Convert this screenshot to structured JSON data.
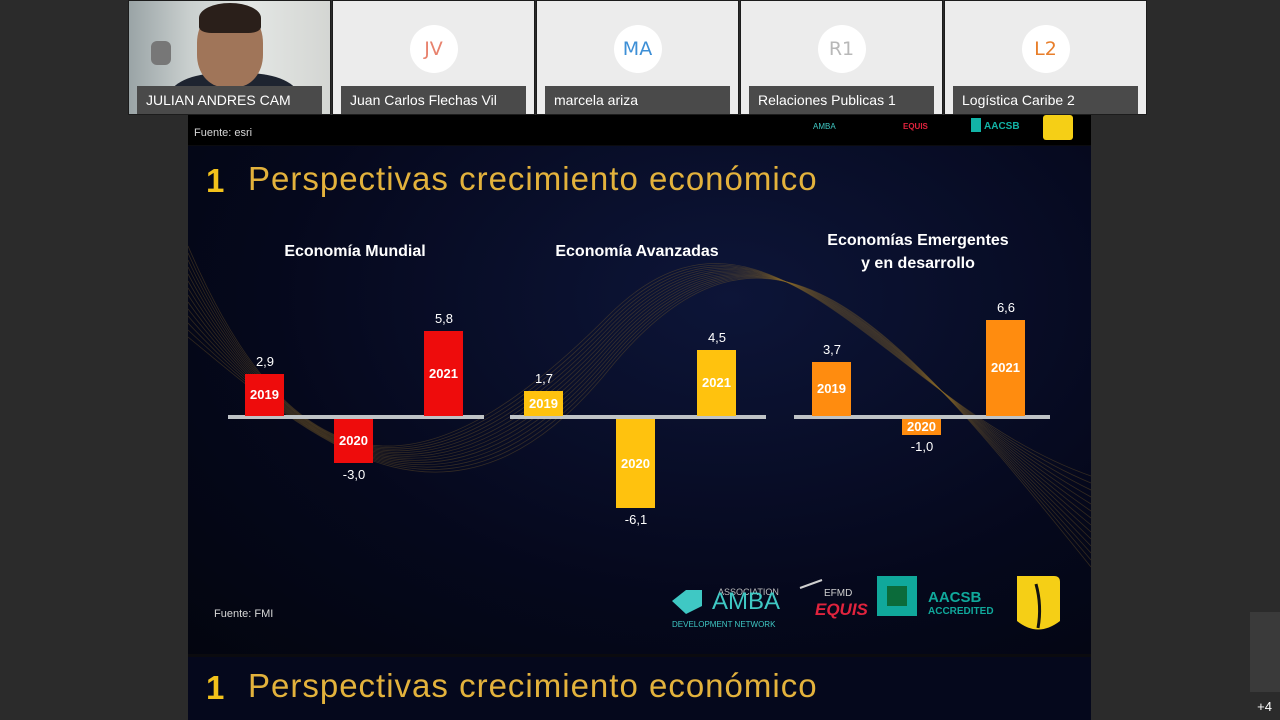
{
  "participants": [
    {
      "name": "JULIAN ANDRES CAM",
      "video": true
    },
    {
      "initials": "JV",
      "name": "Juan Carlos Flechas Vil",
      "color": "#e8826d"
    },
    {
      "initials": "MA",
      "name": "marcela ariza",
      "color": "#3d8fd6"
    },
    {
      "initials": "R1",
      "name": "Relaciones Publicas 1",
      "color": "#b8b8b8"
    },
    {
      "initials": "L2",
      "name": "Logística Caribe 2",
      "color": "#e87e2a"
    }
  ],
  "more_count": "+4",
  "slide_prev": {
    "source": "Fuente: esri"
  },
  "slide": {
    "number": "1",
    "title": "Perspectivas crecimiento económico",
    "source": "Fuente: FMI",
    "logos": {
      "amba_assoc": "ASSOCIATION",
      "amba_name": "AMBA",
      "amba_sub": "DEVELOPMENT NETWORK",
      "efmd": "EFMD",
      "equis": "EQUIS",
      "aacsb": "AACSB",
      "aacsb_sub": "ACCREDITED"
    }
  },
  "slide_next": {
    "number": "1",
    "title": "Perspectivas crecimiento económico"
  },
  "chart_data": [
    {
      "type": "bar",
      "title": "Economía Mundial",
      "categories": [
        "2019",
        "2020",
        "2021"
      ],
      "values": [
        2.9,
        -3.0,
        5.8
      ],
      "labels": [
        "2,9",
        "-3,0",
        "5,8"
      ],
      "color": "#ee0c0c"
    },
    {
      "type": "bar",
      "title": "Economía Avanzadas",
      "categories": [
        "2019",
        "2020",
        "2021"
      ],
      "values": [
        1.7,
        -6.1,
        4.5
      ],
      "labels": [
        "1,7",
        "-6,1",
        "4,5"
      ],
      "color": "#ffc20e"
    },
    {
      "type": "bar",
      "title": "Economías Emergentes y en desarrollo",
      "title_lines": [
        "Economías Emergentes",
        "y en desarrollo"
      ],
      "categories": [
        "2019",
        "2020",
        "2021"
      ],
      "values": [
        3.7,
        -1.0,
        6.6
      ],
      "labels": [
        "3,7",
        "-1,0",
        "6,6"
      ],
      "color": "#ff8c0f"
    }
  ]
}
